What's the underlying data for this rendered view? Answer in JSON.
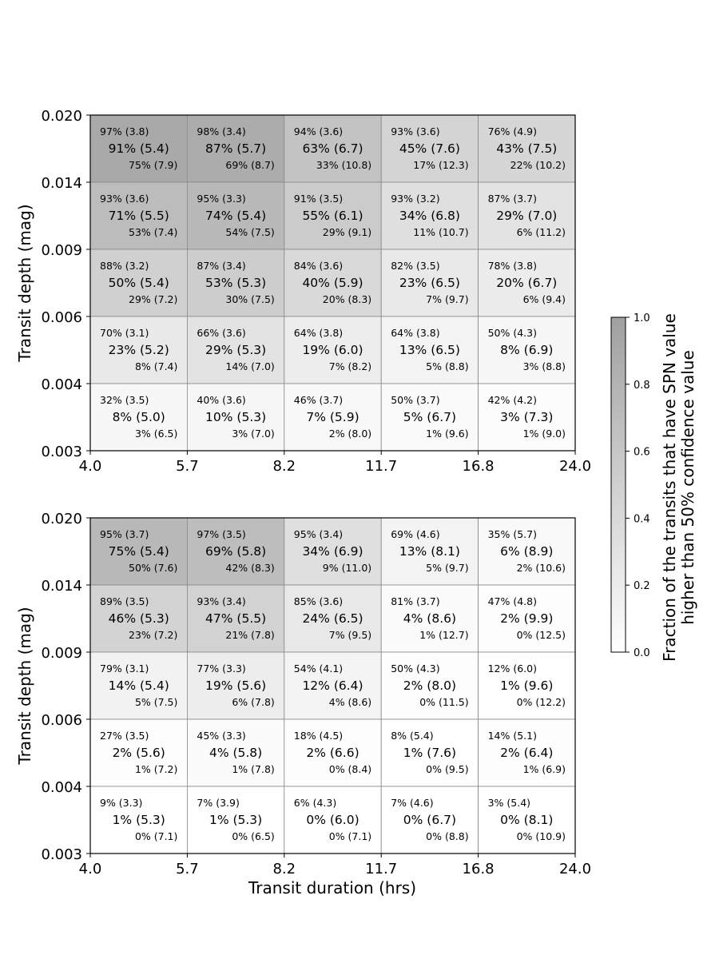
{
  "chart_data": {
    "type": "heatmap",
    "x_label": "Transit duration (hrs)",
    "y_label": "Transit depth (mag)",
    "x_ticks": [
      "4.0",
      "5.7",
      "8.2",
      "11.7",
      "16.8",
      "24.0"
    ],
    "y_ticks": [
      "0.003",
      "0.004",
      "0.006",
      "0.009",
      "0.014",
      "0.020"
    ],
    "colorbar": {
      "label_line1": "Fraction of the transits that have SPN value",
      "label_line2": "higher than 50% confidence value",
      "ticks": [
        "0.0",
        "0.2",
        "0.4",
        "0.6",
        "0.8",
        "1.0"
      ],
      "range": [
        0,
        1
      ],
      "colors": [
        "#ffffff",
        "#a0a0a0"
      ]
    },
    "panels": [
      {
        "rows": [
          [
            {
              "top": "97% (3.8)",
              "mid": "91% (5.4)",
              "bot": "75% (7.9)",
              "value": 0.91
            },
            {
              "top": "98% (3.4)",
              "mid": "87% (5.7)",
              "bot": "69% (8.7)",
              "value": 0.87
            },
            {
              "top": "94% (3.6)",
              "mid": "63% (6.7)",
              "bot": "33% (10.8)",
              "value": 0.63
            },
            {
              "top": "93% (3.6)",
              "mid": "45% (7.6)",
              "bot": "17% (12.3)",
              "value": 0.45
            },
            {
              "top": "76% (4.9)",
              "mid": "43% (7.5)",
              "bot": "22% (10.2)",
              "value": 0.43
            }
          ],
          [
            {
              "top": "93% (3.6)",
              "mid": "71% (5.5)",
              "bot": "53% (7.4)",
              "value": 0.71
            },
            {
              "top": "95% (3.3)",
              "mid": "74% (5.4)",
              "bot": "54% (7.5)",
              "value": 0.74
            },
            {
              "top": "91% (3.5)",
              "mid": "55% (6.1)",
              "bot": "29% (9.1)",
              "value": 0.55
            },
            {
              "top": "93% (3.2)",
              "mid": "34% (6.8)",
              "bot": "11% (10.7)",
              "value": 0.34
            },
            {
              "top": "87% (3.7)",
              "mid": "29% (7.0)",
              "bot": "6% (11.2)",
              "value": 0.29
            }
          ],
          [
            {
              "top": "88% (3.2)",
              "mid": "50% (5.4)",
              "bot": "29% (7.2)",
              "value": 0.5
            },
            {
              "top": "87% (3.4)",
              "mid": "53% (5.3)",
              "bot": "30% (7.5)",
              "value": 0.53
            },
            {
              "top": "84% (3.6)",
              "mid": "40% (5.9)",
              "bot": "20% (8.3)",
              "value": 0.4
            },
            {
              "top": "82% (3.5)",
              "mid": "23% (6.5)",
              "bot": "7% (9.7)",
              "value": 0.23
            },
            {
              "top": "78% (3.8)",
              "mid": "20% (6.7)",
              "bot": "6% (9.4)",
              "value": 0.2
            }
          ],
          [
            {
              "top": "70% (3.1)",
              "mid": "23% (5.2)",
              "bot": "8% (7.4)",
              "value": 0.23
            },
            {
              "top": "66% (3.6)",
              "mid": "29% (5.3)",
              "bot": "14% (7.0)",
              "value": 0.29
            },
            {
              "top": "64% (3.8)",
              "mid": "19% (6.0)",
              "bot": "7% (8.2)",
              "value": 0.19
            },
            {
              "top": "64% (3.8)",
              "mid": "13% (6.5)",
              "bot": "5% (8.8)",
              "value": 0.13
            },
            {
              "top": "50% (4.3)",
              "mid": "8% (6.9)",
              "bot": "3% (8.8)",
              "value": 0.08
            }
          ],
          [
            {
              "top": "32% (3.5)",
              "mid": "8% (5.0)",
              "bot": "3% (6.5)",
              "value": 0.08
            },
            {
              "top": "40% (3.6)",
              "mid": "10% (5.3)",
              "bot": "3% (7.0)",
              "value": 0.1
            },
            {
              "top": "46% (3.7)",
              "mid": "7% (5.9)",
              "bot": "2% (8.0)",
              "value": 0.07
            },
            {
              "top": "50% (3.7)",
              "mid": "5% (6.7)",
              "bot": "1% (9.6)",
              "value": 0.05
            },
            {
              "top": "42% (4.2)",
              "mid": "3% (7.3)",
              "bot": "1% (9.0)",
              "value": 0.03
            }
          ]
        ]
      },
      {
        "rows": [
          [
            {
              "top": "95% (3.7)",
              "mid": "75% (5.4)",
              "bot": "50% (7.6)",
              "value": 0.75
            },
            {
              "top": "97% (3.5)",
              "mid": "69% (5.8)",
              "bot": "42% (8.3)",
              "value": 0.69
            },
            {
              "top": "95% (3.4)",
              "mid": "34% (6.9)",
              "bot": "9% (11.0)",
              "value": 0.34
            },
            {
              "top": "69% (4.6)",
              "mid": "13% (8.1)",
              "bot": "5% (9.7)",
              "value": 0.13
            },
            {
              "top": "35% (5.7)",
              "mid": "6% (8.9)",
              "bot": "2% (10.6)",
              "value": 0.06
            }
          ],
          [
            {
              "top": "89% (3.5)",
              "mid": "46% (5.3)",
              "bot": "23% (7.2)",
              "value": 0.46
            },
            {
              "top": "93% (3.4)",
              "mid": "47% (5.5)",
              "bot": "21% (7.8)",
              "value": 0.47
            },
            {
              "top": "85% (3.6)",
              "mid": "24% (6.5)",
              "bot": "7% (9.5)",
              "value": 0.24
            },
            {
              "top": "81% (3.7)",
              "mid": "4% (8.6)",
              "bot": "1% (12.7)",
              "value": 0.04
            },
            {
              "top": "47% (4.8)",
              "mid": "2% (9.9)",
              "bot": "0% (12.5)",
              "value": 0.02
            }
          ],
          [
            {
              "top": "79% (3.1)",
              "mid": "14% (5.4)",
              "bot": "5% (7.5)",
              "value": 0.14
            },
            {
              "top": "77% (3.3)",
              "mid": "19% (5.6)",
              "bot": "6% (7.8)",
              "value": 0.19
            },
            {
              "top": "54% (4.1)",
              "mid": "12% (6.4)",
              "bot": "4% (8.6)",
              "value": 0.12
            },
            {
              "top": "50% (4.3)",
              "mid": "2% (8.0)",
              "bot": "0% (11.5)",
              "value": 0.02
            },
            {
              "top": "12% (6.0)",
              "mid": "1% (9.6)",
              "bot": "0% (12.2)",
              "value": 0.01
            }
          ],
          [
            {
              "top": "27% (3.5)",
              "mid": "2% (5.6)",
              "bot": "1% (7.2)",
              "value": 0.02
            },
            {
              "top": "45% (3.3)",
              "mid": "4% (5.8)",
              "bot": "1% (7.8)",
              "value": 0.04
            },
            {
              "top": "18% (4.5)",
              "mid": "2% (6.6)",
              "bot": "0% (8.4)",
              "value": 0.02
            },
            {
              "top": "8% (5.4)",
              "mid": "1% (7.6)",
              "bot": "0% (9.5)",
              "value": 0.01
            },
            {
              "top": "14% (5.1)",
              "mid": "2% (6.4)",
              "bot": "1% (6.9)",
              "value": 0.02
            }
          ],
          [
            {
              "top": "9% (3.3)",
              "mid": "1% (5.3)",
              "bot": "0% (7.1)",
              "value": 0.01
            },
            {
              "top": "7% (3.9)",
              "mid": "1% (5.3)",
              "bot": "0% (6.5)",
              "value": 0.01
            },
            {
              "top": "6% (4.3)",
              "mid": "0% (6.0)",
              "bot": "0% (7.1)",
              "value": 0.0
            },
            {
              "top": "7% (4.6)",
              "mid": "0% (6.7)",
              "bot": "0% (8.8)",
              "value": 0.0
            },
            {
              "top": "3% (5.4)",
              "mid": "0% (8.1)",
              "bot": "0% (10.9)",
              "value": 0.0
            }
          ]
        ]
      }
    ]
  }
}
